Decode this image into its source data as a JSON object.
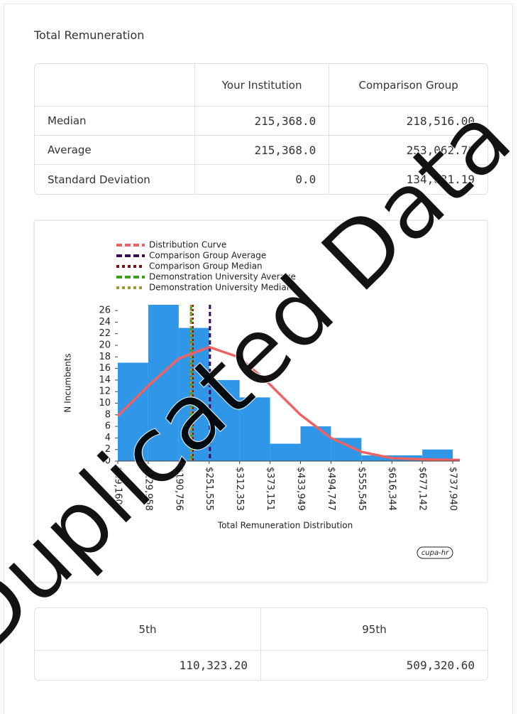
{
  "title": "Total Remuneration",
  "summary_table": {
    "headers": [
      "Your Institution",
      "Comparison Group"
    ],
    "rows": [
      [
        "Median",
        "215,368.0",
        "218,516.00"
      ],
      [
        "Average",
        "215,368.0",
        "253,062.79"
      ],
      [
        "Standard Deviation",
        "0.0",
        "134,831.19"
      ]
    ]
  },
  "chart_data": {
    "type": "histogram",
    "xlabel": "Total Remuneration Distribution",
    "ylabel": "N Incumbents",
    "bins": [
      69160,
      129958,
      190756,
      251555,
      312353,
      373151,
      433949,
      494747,
      555545,
      616344,
      677142,
      737940
    ],
    "counts": [
      17,
      27,
      23,
      14,
      11,
      3,
      6,
      4,
      1,
      1,
      2
    ],
    "color": "#2f96e8",
    "xlim": [
      69160,
      752000
    ],
    "ylim": [
      0,
      27
    ],
    "xticks": [
      {
        "value": 69160,
        "label": "$69,160"
      },
      {
        "value": 129958,
        "label": "$129,958"
      },
      {
        "value": 190756,
        "label": "$190,756"
      },
      {
        "value": 251555,
        "label": "$251,555"
      },
      {
        "value": 312353,
        "label": "$312,353"
      },
      {
        "value": 373151,
        "label": "$373,151"
      },
      {
        "value": 433949,
        "label": "$433,949"
      },
      {
        "value": 494747,
        "label": "$494,747"
      },
      {
        "value": 555545,
        "label": "$555,545"
      },
      {
        "value": 616344,
        "label": "$616,344"
      },
      {
        "value": 677142,
        "label": "$677,142"
      },
      {
        "value": 737940,
        "label": "$737,940"
      }
    ],
    "yticks": [
      0,
      2,
      4,
      6,
      8,
      10,
      12,
      14,
      16,
      18,
      20,
      22,
      24,
      26
    ],
    "curve": {
      "name": "Distribution Curve",
      "color": "#f06262",
      "x": [
        69160,
        129958,
        190756,
        251555,
        312353,
        373151,
        433949,
        494747,
        555545,
        616344,
        677142,
        737940,
        752000
      ],
      "values": [
        7.8,
        13.0,
        17.7,
        19.7,
        17.9,
        13.2,
        8.0,
        4.0,
        1.6,
        0.5,
        0.3,
        0.2,
        0.2
      ]
    },
    "reference_lines": [
      {
        "name": "Comparison Group Average",
        "color": "#3a0a5a",
        "x": 253062.79,
        "dash": "6 4"
      },
      {
        "name": "Comparison Group Median",
        "color": "#7a1414",
        "x": 218516,
        "dash": "3 3"
      },
      {
        "name": "Demonstration University Average",
        "color": "#3ea020",
        "x": 215368,
        "dash": "6 4"
      },
      {
        "name": "Demonstration University Median",
        "color": "#a8962e",
        "x": 215368,
        "dash": "3 3"
      }
    ],
    "logo": "cupa-hr"
  },
  "percentile_table": {
    "headers": [
      "5th",
      "95th"
    ],
    "row": [
      "110,323.20",
      "509,320.60"
    ]
  },
  "watermark": "Duplicated Data"
}
